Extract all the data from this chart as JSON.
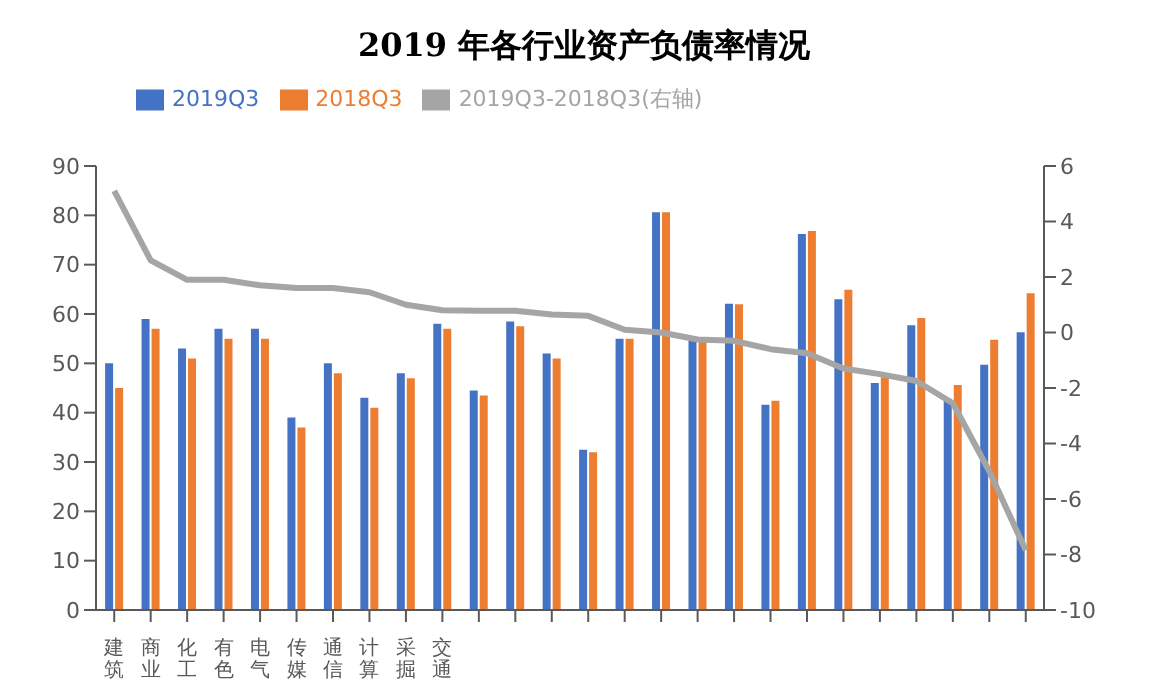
{
  "chart_data": {
    "type": "bar",
    "title": "2019 年各行业资产负债率情况",
    "categories": [
      "建筑",
      "商业",
      "化工",
      "有色",
      "电气",
      "传媒",
      "通信",
      "计算",
      "采掘",
      "交通",
      null,
      null,
      null,
      null,
      null,
      null,
      null,
      null,
      null,
      null,
      null,
      null,
      null,
      null,
      null,
      null
    ],
    "series": [
      {
        "name": "2019Q3",
        "color": "#4472c4",
        "values": [
          50,
          59,
          53,
          57,
          57,
          39,
          50,
          43,
          48,
          58,
          44.5,
          58.5,
          52,
          32.5,
          55,
          80.6,
          55,
          62.1,
          41.6,
          76.2,
          63,
          46,
          57.7,
          42.8,
          49.7,
          56.3
        ]
      },
      {
        "name": "2018Q3",
        "color": "#ed7d31",
        "values": [
          45,
          57,
          51,
          55,
          55,
          37,
          48,
          41,
          47,
          57,
          43.5,
          57.5,
          51,
          32,
          55,
          80.6,
          55,
          62,
          42.4,
          76.8,
          64.9,
          47.2,
          59.2,
          45.6,
          54.8,
          64.2
        ]
      },
      {
        "name": "2019Q3-2018Q3(右轴)",
        "type": "line",
        "axis": "y2",
        "color": "#a5a5a5",
        "marker": "none",
        "values": [
          5.1,
          2.6,
          1.9,
          1.9,
          1.7,
          1.6,
          1.6,
          1.45,
          1,
          0.8,
          0.78,
          0.78,
          0.65,
          0.6,
          0.1,
          0,
          -0.25,
          -0.3,
          -0.6,
          -0.75,
          -1.3,
          -1.5,
          -1.75,
          -2.55,
          -5,
          -7.85
        ]
      }
    ],
    "ylim": [
      0,
      90
    ],
    "yticks": [
      0,
      10,
      20,
      30,
      40,
      50,
      60,
      70,
      80,
      90
    ],
    "y2lim": [
      -10,
      6
    ],
    "y2ticks": [
      -10,
      -8,
      -6,
      -4,
      -2,
      0,
      2,
      4,
      6
    ],
    "grid": false,
    "legend": "top"
  }
}
